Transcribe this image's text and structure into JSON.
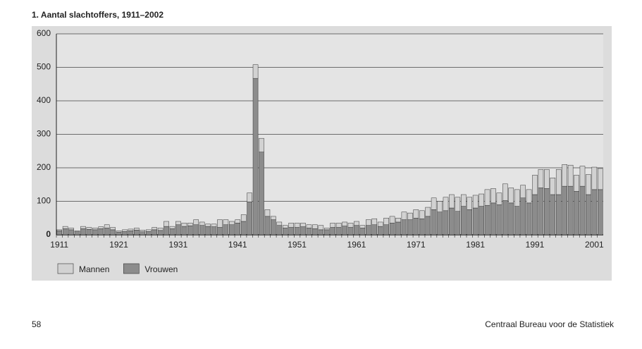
{
  "chart_data": {
    "type": "stacked_bar",
    "title": "1. Aantal slachtoffers, 1911–2002",
    "categories": [
      "1911",
      null,
      null,
      null,
      null,
      null,
      null,
      null,
      null,
      null,
      "1921",
      null,
      null,
      null,
      null,
      null,
      null,
      null,
      null,
      null,
      "1931",
      null,
      null,
      null,
      null,
      null,
      null,
      null,
      null,
      null,
      "1941",
      null,
      null,
      null,
      null,
      null,
      null,
      null,
      null,
      null,
      "1951",
      null,
      null,
      null,
      null,
      null,
      null,
      null,
      null,
      null,
      "1961",
      null,
      null,
      null,
      null,
      null,
      null,
      null,
      null,
      null,
      "1971",
      null,
      null,
      null,
      null,
      null,
      null,
      null,
      null,
      null,
      "1981",
      null,
      null,
      null,
      null,
      null,
      null,
      null,
      null,
      null,
      "1991",
      null,
      null,
      null,
      null,
      null,
      null,
      null,
      null,
      null,
      "2001",
      null
    ],
    "series": [
      {
        "name": "Mannen",
        "color": "#d2d2d2",
        "values": [
          3,
          7,
          5,
          3,
          7,
          6,
          5,
          6,
          10,
          7,
          4,
          5,
          5,
          6,
          5,
          5,
          7,
          7,
          15,
          7,
          10,
          10,
          8,
          15,
          10,
          7,
          8,
          23,
          15,
          10,
          10,
          20,
          27,
          41,
          41,
          20,
          10,
          10,
          8,
          13,
          13,
          11,
          10,
          12,
          13,
          5,
          13,
          13,
          12,
          13,
          12,
          8,
          17,
          18,
          13,
          20,
          20,
          12,
          23,
          20,
          25,
          24,
          27,
          35,
          32,
          40,
          40,
          42,
          35,
          37,
          38,
          37,
          47,
          43,
          35,
          50,
          45,
          50,
          38,
          40,
          58,
          55,
          57,
          50,
          75,
          65,
          63,
          48,
          60,
          60,
          67,
          63
        ]
      },
      {
        "name": "Vrouwen",
        "color": "#8c8c8c",
        "values": [
          12,
          18,
          15,
          9,
          18,
          16,
          15,
          18,
          20,
          15,
          8,
          10,
          12,
          14,
          9,
          10,
          15,
          13,
          25,
          18,
          30,
          25,
          27,
          30,
          28,
          25,
          24,
          22,
          30,
          30,
          35,
          40,
          98,
          467,
          247,
          55,
          45,
          28,
          20,
          22,
          22,
          24,
          20,
          18,
          15,
          15,
          22,
          22,
          26,
          22,
          28,
          20,
          28,
          30,
          25,
          30,
          35,
          38,
          45,
          45,
          50,
          48,
          55,
          75,
          68,
          72,
          80,
          70,
          85,
          75,
          80,
          85,
          88,
          95,
          90,
          102,
          95,
          85,
          110,
          95,
          120,
          140,
          138,
          120,
          120,
          145,
          145,
          130,
          145,
          120,
          135,
          135
        ]
      }
    ],
    "ylim": [
      0,
      600
    ],
    "yticks": [
      0,
      100,
      200,
      300,
      400,
      500,
      600
    ],
    "grid": true,
    "legend": "bottom-left"
  },
  "footer": {
    "page_number": "58",
    "publisher": "Centraal Bureau voor de Statistiek"
  }
}
